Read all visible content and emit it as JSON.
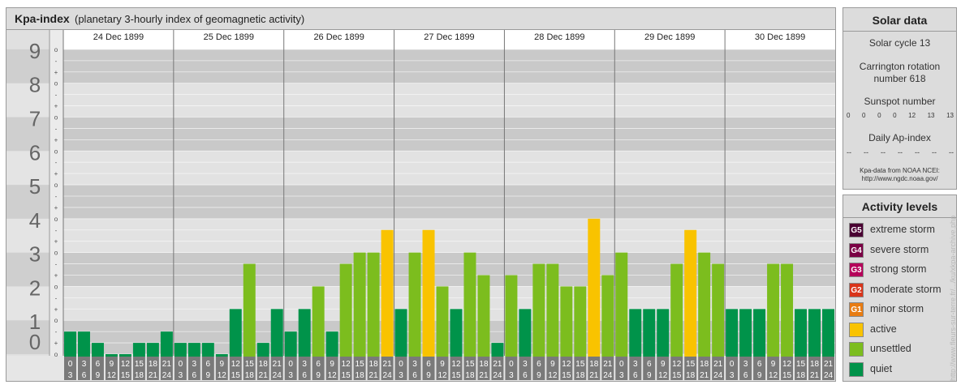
{
  "header": {
    "title": "Kpa-index",
    "subtitle": "(planetary 3-hourly index of geomagnetic activity)"
  },
  "chart_data": {
    "type": "bar",
    "ylim": [
      0,
      9
    ],
    "y_ticks": [
      "0",
      "1",
      "2",
      "3",
      "4",
      "5",
      "6",
      "7",
      "8",
      "9"
    ],
    "minor_labels": [
      "-",
      "o",
      "+"
    ],
    "days": [
      "24 Dec 1899",
      "25 Dec 1899",
      "26 Dec 1899",
      "27 Dec 1899",
      "28 Dec 1899",
      "29 Dec 1899",
      "30 Dec 1899"
    ],
    "interval_labels": [
      [
        "0",
        "3"
      ],
      [
        "3",
        "6"
      ],
      [
        "6",
        "9"
      ],
      [
        "9",
        "12"
      ],
      [
        "12",
        "15"
      ],
      [
        "15",
        "18"
      ],
      [
        "18",
        "21"
      ],
      [
        "21",
        "24"
      ]
    ],
    "values": [
      0.667,
      0.667,
      0.333,
      0,
      0,
      0.333,
      0.333,
      0.667,
      0.333,
      0.333,
      0.333,
      0,
      1.333,
      2.667,
      0.333,
      1.333,
      0.667,
      1.333,
      2,
      0.667,
      2.667,
      3,
      3,
      3.667,
      1.333,
      3,
      3.667,
      2,
      1.333,
      3,
      2.333,
      0.333,
      2.333,
      1.333,
      2.667,
      2.667,
      2,
      2,
      4,
      2.333,
      3,
      1.333,
      1.333,
      1.333,
      2.667,
      3.667,
      3,
      2.667,
      1.333,
      1.333,
      1.333,
      2.667,
      2.667,
      1.333,
      1.333,
      1.333
    ],
    "level_colors": {
      "quiet": "#00934a",
      "unsettled": "#7cbd1e",
      "active": "#f9c300"
    }
  },
  "solar": {
    "title": "Solar data",
    "cycle": "Solar cycle 13",
    "carrington_line1": "Carrington rotation",
    "carrington_line2": "number 618",
    "sunspot_label": "Sunspot number",
    "sunspots": [
      "0",
      "0",
      "0",
      "0",
      "12",
      "13",
      "13"
    ],
    "ap_label": "Daily Ap-index",
    "ap_values": [
      "--",
      "--",
      "--",
      "--",
      "--",
      "--",
      "--"
    ],
    "credit_line1": "Kpa-data from NOAA NCEI:",
    "credit_line2": "http://www.ngdc.noaa.gov/"
  },
  "activity": {
    "title": "Activity levels",
    "items": [
      {
        "code": "G5",
        "label": "extreme storm",
        "color": "#4a0033"
      },
      {
        "code": "G4",
        "label": "severe storm",
        "color": "#7a0044"
      },
      {
        "code": "G3",
        "label": "strong storm",
        "color": "#b5005a"
      },
      {
        "code": "G2",
        "label": "moderate storm",
        "color": "#d9341a"
      },
      {
        "code": "G1",
        "label": "minor storm",
        "color": "#e87c12"
      },
      {
        "code": "",
        "label": "active",
        "color": "#f9c300"
      },
      {
        "code": "",
        "label": "unsettled",
        "color": "#7cbd1e"
      },
      {
        "code": "",
        "label": "quiet",
        "color": "#00934a"
      }
    ]
  },
  "side_credit": "http://www.fleurs-sur-terre.fr/.../ku/xkpa-archive.php"
}
